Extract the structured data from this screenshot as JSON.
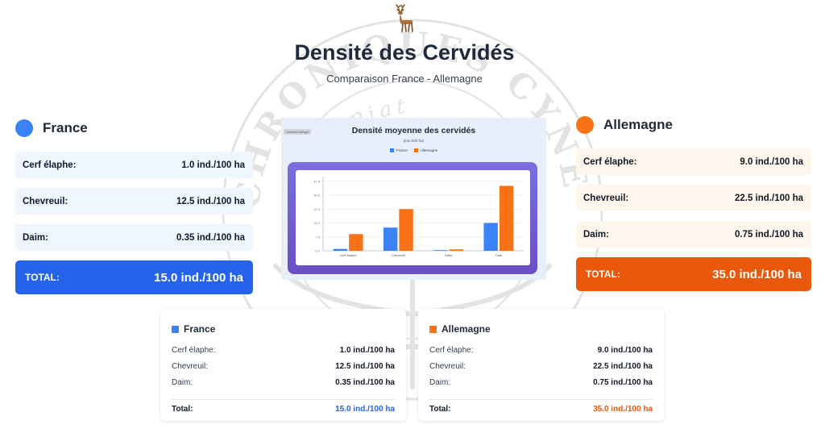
{
  "header": {
    "title": "Densité des Cervidés",
    "subtitle": "Comparaison France - Allemagne"
  },
  "watermark": {
    "text_top": "CHRONIQUES CYNÉGÉTIQUES",
    "text_inner": "Denis Piat",
    "icon": "deer-antlers-seal"
  },
  "colors": {
    "france": "#3b82f6",
    "france_dark": "#2563eb",
    "germany": "#f97316",
    "germany_dark": "#ea580c"
  },
  "france": {
    "name": "France",
    "rows": [
      {
        "label": "Cerf élaphe:",
        "value": "1.0 ind./100 ha"
      },
      {
        "label": "Chevreuil:",
        "value": "12.5 ind./100 ha"
      },
      {
        "label": "Daim:",
        "value": "0.35 ind./100 ha"
      }
    ],
    "total_label": "TOTAL:",
    "total_value": "15.0 ind./100 ha"
  },
  "germany": {
    "name": "Allemagne",
    "rows": [
      {
        "label": "Cerf élaphe:",
        "value": "9.0 ind./100 ha"
      },
      {
        "label": "Chevreuil:",
        "value": "22.5 ind./100 ha"
      },
      {
        "label": "Daim:",
        "value": "0.75 ind./100 ha"
      }
    ],
    "total_label": "TOTAL:",
    "total_value": "35.0 ind./100 ha"
  },
  "cards": {
    "france": {
      "name": "France",
      "rows": [
        {
          "label": "Cerf élaphe:",
          "value": "1.0 ind./100 ha"
        },
        {
          "label": "Chevreuil:",
          "value": "12.5 ind./100 ha"
        },
        {
          "label": "Daim:",
          "value": "0.35 ind./100 ha"
        }
      ],
      "total_label": "Total:",
      "total_value": "15.0 ind./100 ha"
    },
    "germany": {
      "name": "Allemagne",
      "rows": [
        {
          "label": "Cerf élaphe:",
          "value": "9.0 ind./100 ha"
        },
        {
          "label": "Chevreuil:",
          "value": "22.5 ind./100 ha"
        },
        {
          "label": "Daim:",
          "value": "0.75 ind./100 ha"
        }
      ],
      "total_label": "Total:",
      "total_value": "35.0 ind./100 ha"
    }
  },
  "chart_data": {
    "type": "bar",
    "title": "Densité moyenne des cervidés",
    "subtitle": "(ind./100 ha)",
    "badge": "Contenu intégré",
    "categories": [
      "Cerf élaphe",
      "Chevreuil",
      "Daim",
      "Total"
    ],
    "series": [
      {
        "name": "France",
        "values": [
          1.0,
          12.5,
          0.35,
          15.0
        ],
        "color": "#3b82f6"
      },
      {
        "name": "Allemagne",
        "values": [
          9.0,
          22.5,
          0.75,
          35.0
        ],
        "color": "#f97316"
      }
    ],
    "ylim": [
      0,
      40
    ],
    "yticks": [
      "0.0",
      "7.5",
      "15.0",
      "22.5",
      "30.0",
      "37.5"
    ],
    "ytick_values": [
      0,
      7.5,
      15,
      22.5,
      30,
      37.5
    ],
    "legend_position": "top-center",
    "grid": true
  }
}
